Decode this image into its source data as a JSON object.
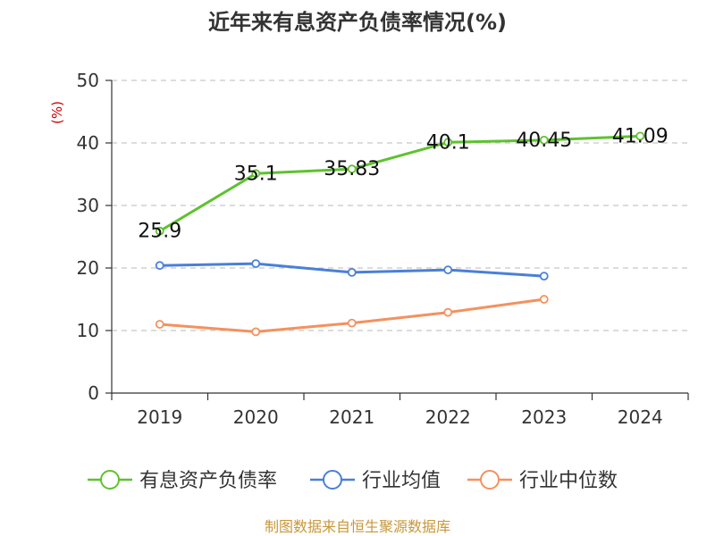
{
  "chart_data": {
    "type": "line",
    "title": "近年来有息资产负债率情况(%)",
    "ylabel": "(%)",
    "ylim": [
      0,
      50
    ],
    "yticks": [
      0,
      10,
      20,
      30,
      40,
      50
    ],
    "grid": true,
    "legend_position": "bottom",
    "categories": [
      "2019",
      "2020",
      "2021",
      "2022",
      "2023",
      "2024"
    ],
    "series": [
      {
        "name": "有息资产负债率",
        "color": "#5ec22f",
        "values": [
          25.9,
          35.1,
          35.83,
          40.1,
          40.45,
          41.09
        ],
        "labels": [
          "25.9",
          "35.1",
          "35.83",
          "40.1",
          "40.45",
          "41.09"
        ]
      },
      {
        "name": "行业均值",
        "color": "#4a7fd8",
        "values": [
          20.4,
          20.7,
          19.3,
          19.7,
          18.7,
          null
        ]
      },
      {
        "name": "行业中位数",
        "color": "#f4915e",
        "values": [
          11.0,
          9.8,
          11.2,
          12.9,
          15.0,
          null
        ]
      }
    ]
  },
  "source": "制图数据来自恒生聚源数据库"
}
